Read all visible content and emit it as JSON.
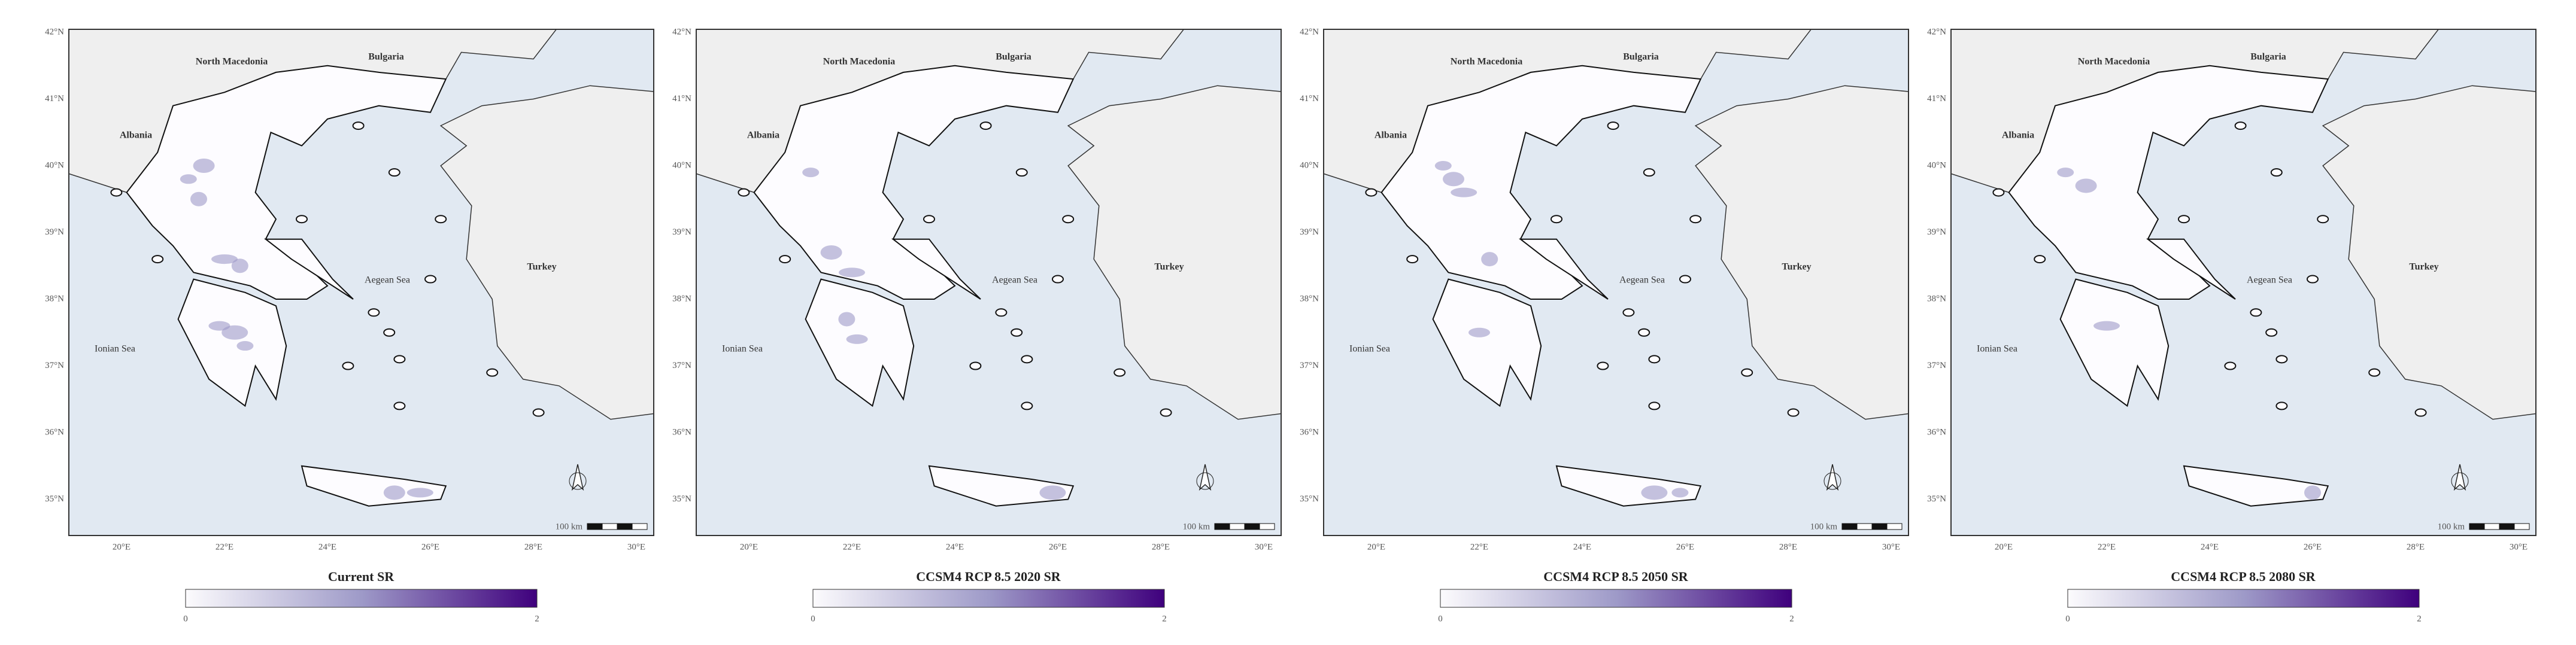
{
  "panels": [
    {
      "title": "Current SR",
      "scale_label": "100 km",
      "legend_min": "0",
      "legend_max": "2"
    },
    {
      "title": "CCSM4 RCP 8.5 2020 SR",
      "scale_label": "100 km",
      "legend_min": "0",
      "legend_max": "2"
    },
    {
      "title": "CCSM4 RCP 8.5 2050 SR",
      "scale_label": "100 km",
      "legend_min": "0",
      "legend_max": "2"
    },
    {
      "title": "CCSM4 RCP 8.5 2080 SR",
      "scale_label": "100 km",
      "legend_min": "0",
      "legend_max": "2"
    }
  ],
  "labels": {
    "countries": [
      "North Macedonia",
      "Bulgaria",
      "Albania",
      "Turkey"
    ],
    "seas": [
      "Aegean Sea",
      "Ionian Sea"
    ]
  },
  "lat_ticks": [
    "42°N",
    "41°N",
    "40°N",
    "39°N",
    "38°N",
    "37°N",
    "36°N",
    "35°N"
  ],
  "lon_ticks": [
    "20°E",
    "22°E",
    "24°E",
    "26°E",
    "28°E",
    "30°E"
  ]
}
